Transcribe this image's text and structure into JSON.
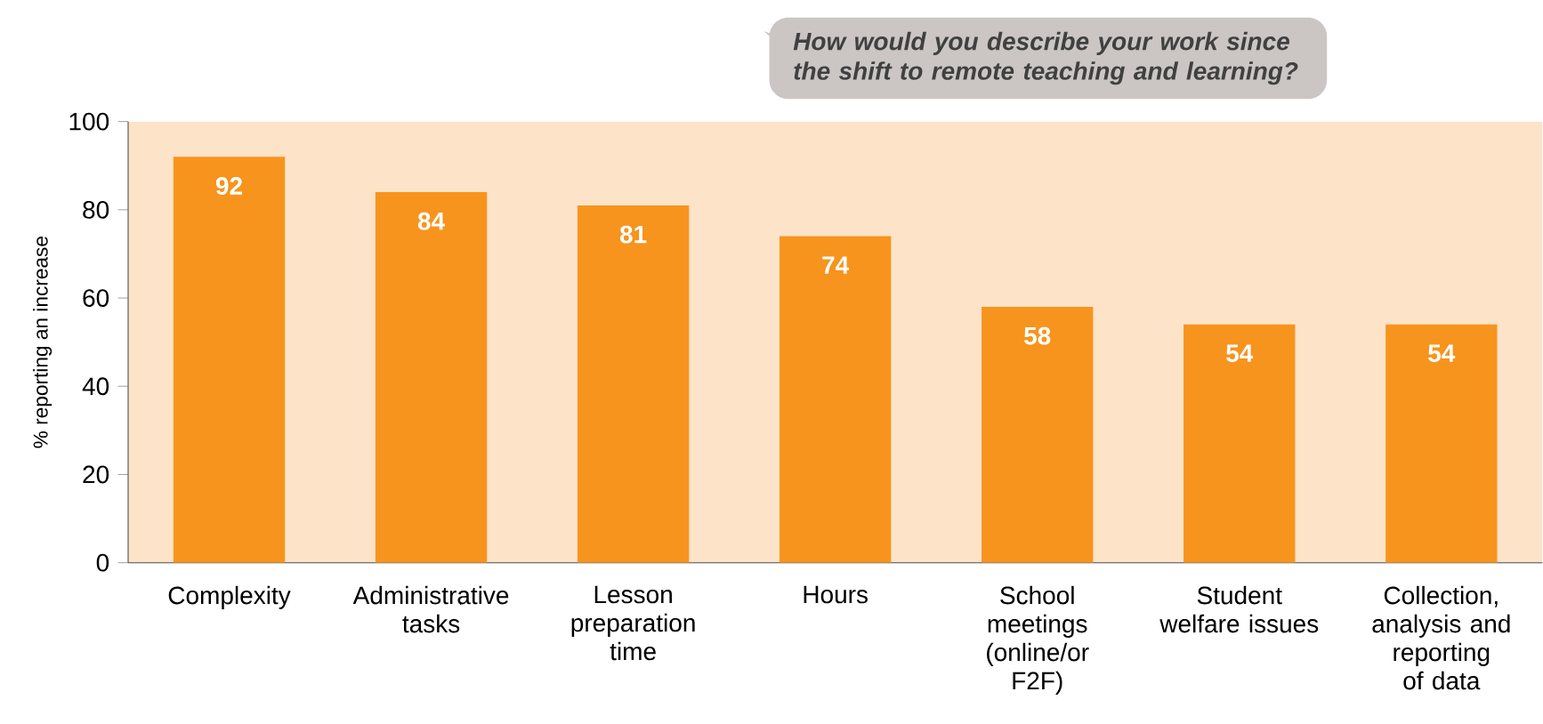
{
  "chart_data": {
    "type": "bar",
    "ylabel": "% reporting an increase",
    "categories": [
      "Complexity",
      "Administrative tasks",
      "Lesson preparation time",
      "Hours",
      "School meetings (online/or F2F)",
      "Student welfare issues",
      "Collection, analysis and reporting of data"
    ],
    "values": [
      92,
      84,
      81,
      74,
      58,
      54,
      54
    ],
    "color": "#f7941d",
    "ylim": [
      0,
      100
    ],
    "yticks": [
      0,
      20,
      40,
      60,
      80,
      100
    ],
    "data_labels": true,
    "annotations": [
      "How would you describe your work since the shift to remote teaching and learning?"
    ]
  }
}
